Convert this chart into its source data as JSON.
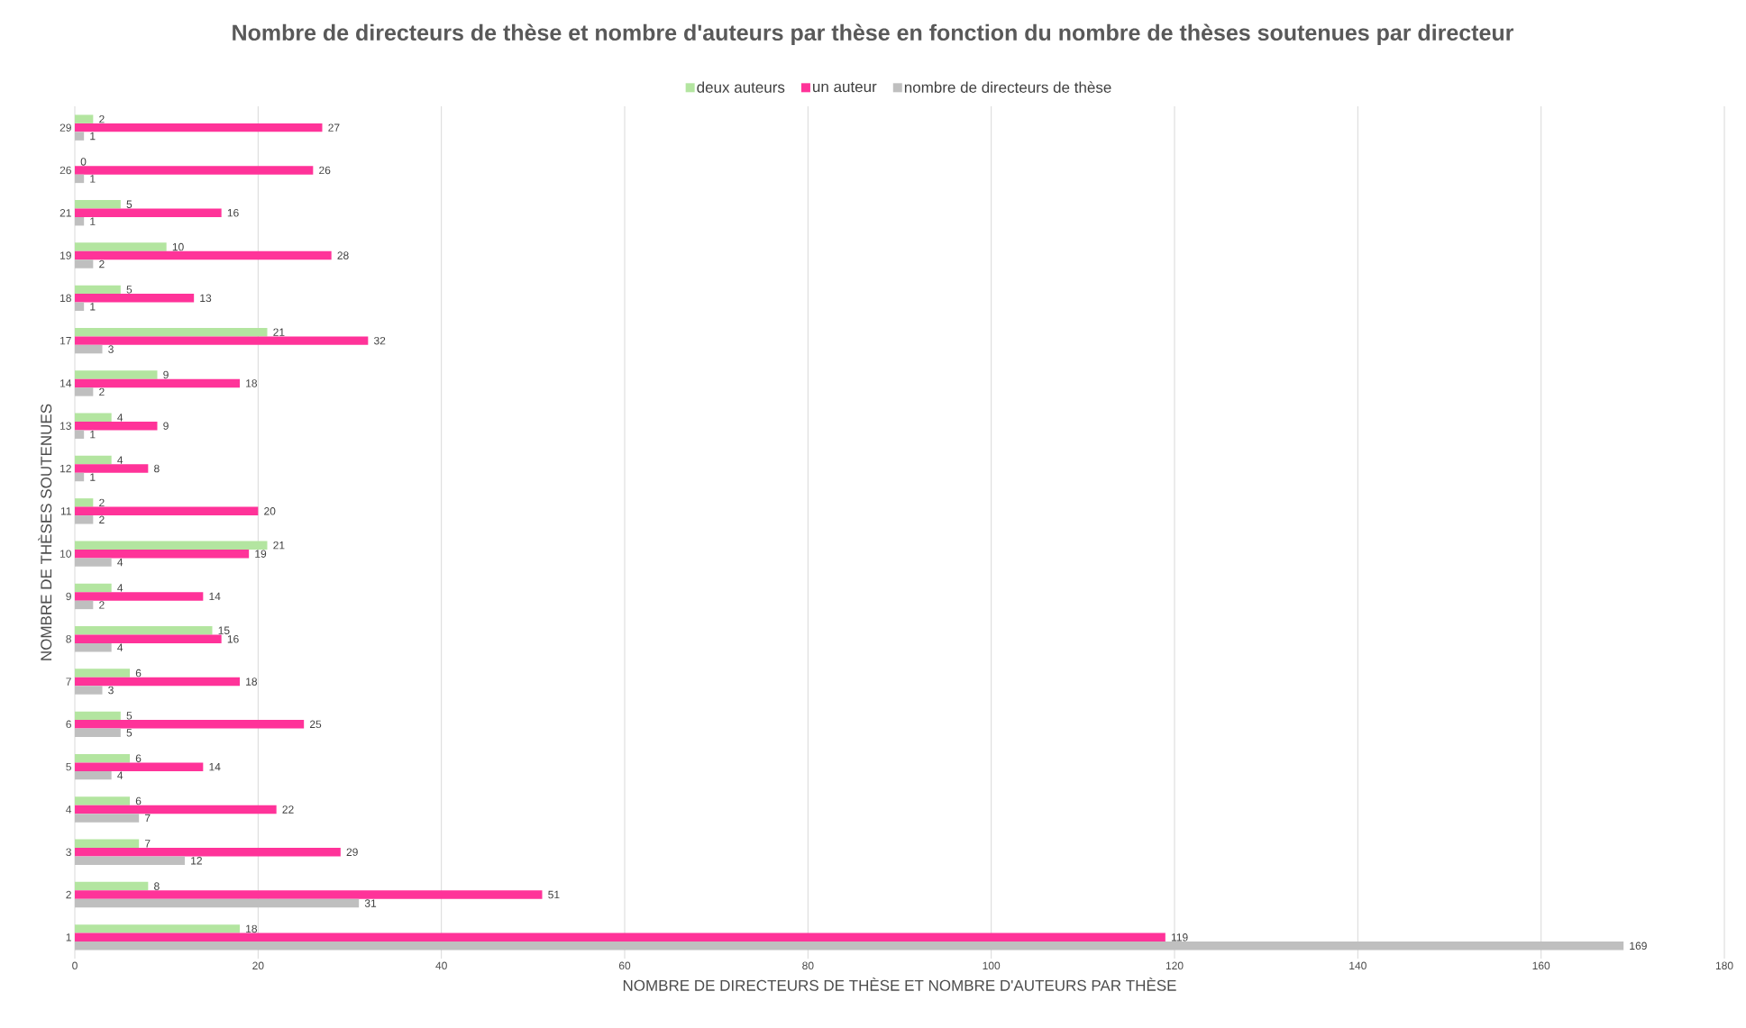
{
  "chart_data": {
    "type": "bar",
    "orientation": "horizontal",
    "title": "Nombre de directeurs de thèse et nombre d'auteurs par thèse en fonction du nombre de thèses soutenues par directeur",
    "xlabel": "NOMBRE DE DIRECTEURS DE THÈSE ET NOMBRE D'AUTEURS PAR THÈSE",
    "ylabel": "NOMBRE DE THÈSES SOUTENUES",
    "categories": [
      "29",
      "26",
      "21",
      "19",
      "18",
      "17",
      "14",
      "13",
      "12",
      "11",
      "10",
      "9",
      "8",
      "7",
      "6",
      "5",
      "4",
      "3",
      "2",
      "1"
    ],
    "series": [
      {
        "name": "deux auteurs",
        "color": "#b3e5a0",
        "values": [
          2,
          0,
          5,
          10,
          5,
          21,
          9,
          4,
          4,
          2,
          21,
          4,
          15,
          6,
          5,
          6,
          6,
          7,
          8,
          18
        ]
      },
      {
        "name": "un auteur",
        "color": "#ff3399",
        "values": [
          27,
          26,
          16,
          28,
          13,
          32,
          18,
          9,
          8,
          20,
          19,
          14,
          16,
          18,
          25,
          14,
          22,
          29,
          51,
          119
        ]
      },
      {
        "name": "nombre de directeurs de thèse",
        "color": "#bfbfbf",
        "values": [
          1,
          1,
          1,
          2,
          1,
          3,
          2,
          1,
          1,
          2,
          4,
          2,
          4,
          3,
          5,
          4,
          7,
          12,
          31,
          169
        ]
      }
    ],
    "xlim": [
      0,
      180
    ],
    "xticks": [
      0,
      20,
      40,
      60,
      80,
      100,
      120,
      140,
      160,
      180
    ],
    "grid": "x",
    "legend": "top",
    "data_labels": true
  }
}
